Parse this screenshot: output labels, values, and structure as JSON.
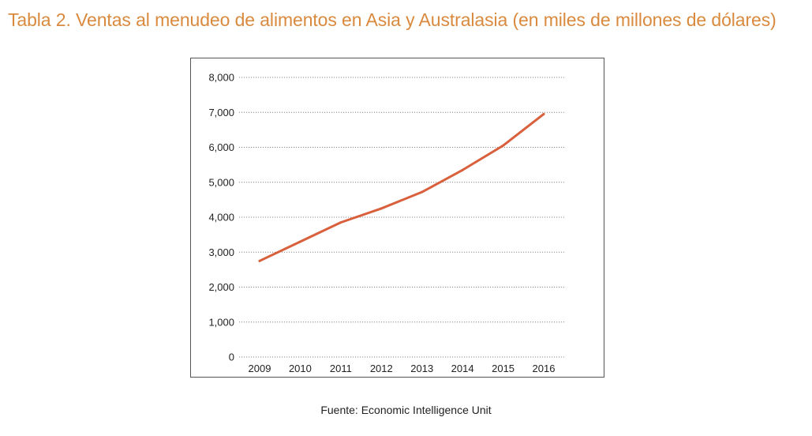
{
  "title": "Tabla 2. Ventas al menudeo de alimentos en Asia y Australasia (en miles de millones de dólares)",
  "source": "Fuente: Economic Intelligence Unit",
  "colors": {
    "title": "#D98A3E",
    "line": "#D9603C",
    "grid": "#888888"
  },
  "chart_data": {
    "type": "line",
    "title": "",
    "xlabel": "",
    "ylabel": "",
    "categories": [
      "2009",
      "2010",
      "2011",
      "2012",
      "2013",
      "2014",
      "2015",
      "2016"
    ],
    "y_ticks": [
      "0",
      "1,000",
      "2,000",
      "3,000",
      "4,000",
      "5,000",
      "6,000",
      "7,000",
      "8,000"
    ],
    "ylim": [
      0,
      8000
    ],
    "grid": true,
    "legend": "none",
    "series": [
      {
        "values": [
          2750,
          3300,
          3850,
          4250,
          4720,
          5350,
          6050,
          6950
        ]
      }
    ]
  }
}
